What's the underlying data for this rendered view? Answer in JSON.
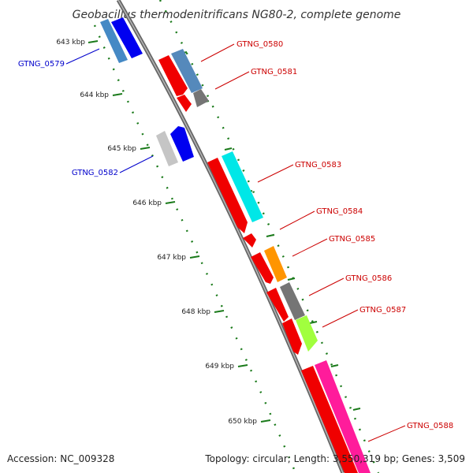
{
  "title": "Geobacillus thermodenitrificans NG80-2, complete genome",
  "accession_text": "Accession: NC_009328",
  "topology_text": "Topology: circular; Length: 3,550,319 bp; Genes: 3,509",
  "colors": {
    "backbone": "#808080",
    "tick": "#1a7a1a",
    "label_forward": "#0000cc",
    "label_reverse": "#cc0000"
  },
  "ticks": [
    {
      "label": "643 kbp"
    },
    {
      "label": "644 kbp"
    },
    {
      "label": "645 kbp"
    },
    {
      "label": "646 kbp"
    },
    {
      "label": "647 kbp"
    },
    {
      "label": "648 kbp"
    },
    {
      "label": "649 kbp"
    },
    {
      "label": "650 kbp"
    }
  ],
  "genes": [
    {
      "name": "GTNG_0579",
      "strand": "forward",
      "colors": [
        "#3a7fc0",
        "#0000ee"
      ]
    },
    {
      "name": "GTNG_0580",
      "strand": "reverse",
      "colors": [
        "#ee0000",
        "#4a7fb5"
      ]
    },
    {
      "name": "GTNG_0581",
      "strand": "reverse",
      "colors": [
        "#ee0000",
        "#6b6b6b"
      ]
    },
    {
      "name": "GTNG_0582",
      "strand": "forward",
      "colors": [
        "#c0c0c0",
        "#0000ee"
      ]
    },
    {
      "name": "GTNG_0583",
      "strand": "reverse",
      "colors": [
        "#ee0000",
        "#00e5e5"
      ]
    },
    {
      "name": "GTNG_0584",
      "strand": "reverse",
      "colors": [
        "#ee0000"
      ]
    },
    {
      "name": "GTNG_0585",
      "strand": "reverse",
      "colors": [
        "#ee0000",
        "#ff8c00"
      ]
    },
    {
      "name": "GTNG_0586",
      "strand": "reverse",
      "colors": [
        "#ee0000",
        "#6b6b6b"
      ]
    },
    {
      "name": "GTNG_0587",
      "strand": "reverse",
      "colors": [
        "#ee0000",
        "#99ff33"
      ]
    },
    {
      "name": "GTNG_0588",
      "strand": "reverse",
      "colors": [
        "#ee0000",
        "#ff1493"
      ]
    }
  ]
}
